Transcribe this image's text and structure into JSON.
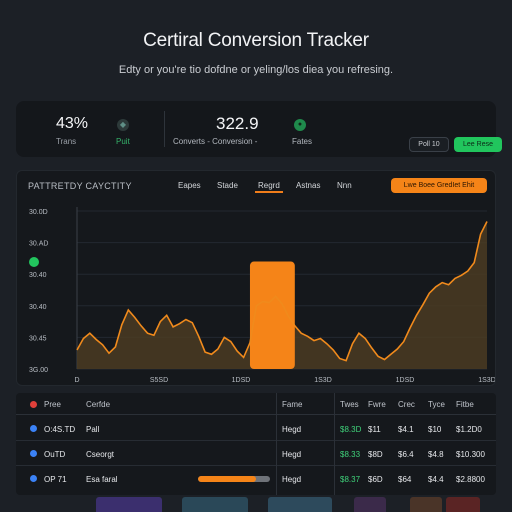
{
  "header": {
    "title": "Certiral Conversion Tracker",
    "subtitle": "Edty or you're tio dofdne or yeling/los diea you refresing."
  },
  "stats": {
    "a_value": "43%",
    "a_label": "Trans",
    "a_label2": "Puit",
    "b_value": "322.9",
    "b_label": "Converts - Conversion -",
    "b_label2": "Fates",
    "btn_ghost": "Poll 10",
    "btn_green": "Lee Rese"
  },
  "panel": {
    "title": "PATTRETDY CAYCTITY",
    "tabs": [
      "Eapes",
      "Stade",
      "Regrd",
      "Astnas",
      "Nnn"
    ],
    "active_tab": 2,
    "action": "Lwe Boee GredIet Ehit"
  },
  "chart_data": {
    "type": "area",
    "title": "PATTRETDY CAYCTITY",
    "y_ticks": [
      "30.0D",
      "30.AD",
      "30.40",
      "30.40",
      "30.45",
      "3G.00"
    ],
    "x_ticks": [
      "D",
      "S5SD",
      "1DSD",
      "1S3D",
      "1DSD",
      "1S3D"
    ],
    "series": [
      {
        "values": [
          18,
          29,
          34,
          28,
          23,
          15,
          21,
          42,
          56,
          49,
          41,
          34,
          32,
          45,
          51,
          40,
          43,
          47,
          44,
          31,
          16,
          14,
          19,
          30,
          26,
          17,
          11,
          25,
          60,
          64,
          63,
          69,
          62,
          50,
          41,
          34,
          31,
          27,
          29,
          24,
          18,
          10,
          8,
          24,
          34,
          29,
          20,
          12,
          9,
          14,
          19,
          26,
          39,
          51,
          61,
          72,
          78,
          82,
          80,
          86,
          89,
          93,
          101,
          128,
          140
        ]
      }
    ],
    "highlight_bar": {
      "from_index": 27,
      "to_index": 34,
      "value": 102
    },
    "ylim": [
      0,
      150
    ],
    "colors": {
      "line": "#f08a1c",
      "fill": "#4a3b22",
      "bar": "#f58418"
    }
  },
  "table": {
    "headers": [
      "Pree",
      "Cerfde",
      "Fame",
      "Twes",
      "Fwre",
      "Crec",
      "Tyce",
      "Fitbe"
    ],
    "rows": [
      {
        "dot_color": "#3b82f6",
        "c1": "O:4S.TD",
        "c2": "Pall",
        "c3": "Hegd",
        "c4": "$8.3D",
        "c5": "$11",
        "c6": "$4.1",
        "c7": "$10",
        "c8": "$1.2D0",
        "progress": null
      },
      {
        "dot_color": "#3b82f6",
        "c1": "OuTD",
        "c2": "Cseorgt",
        "c3": "Hegd",
        "c4": "$8.33",
        "c5": "$8D",
        "c6": "$6.4",
        "c7": "$4.8",
        "c8": "$10.300",
        "progress": null
      },
      {
        "dot_color": "#3b82f6",
        "c1": "OP 71",
        "c2": "Esa faral",
        "c3": "Hegd",
        "c4": "$8.37",
        "c5": "$6D",
        "c6": "$64",
        "c7": "$4.4",
        "c8": "$2.8800",
        "progress": 0.8
      }
    ],
    "header_dot_color": "#e0403a"
  },
  "footer_swatches": [
    "#3b2f6e",
    "#2a4858",
    "#2d4a5c",
    "#3b2a4a",
    "#4a3428",
    "#5a2424"
  ]
}
